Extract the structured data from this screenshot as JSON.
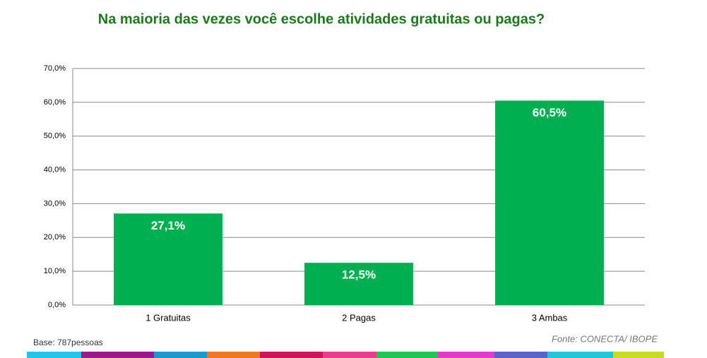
{
  "chart_data": {
    "type": "bar",
    "title": "Na maioria das vezes você escolhe atividades gratuitas ou pagas?",
    "categories": [
      "1 Gratuitas",
      "2 Pagas",
      "3 Ambas"
    ],
    "values": [
      27.1,
      12.5,
      60.5
    ],
    "value_labels": [
      "27,1%",
      "12,5%",
      "60,5%"
    ],
    "color": "#00b050",
    "ylim": [
      0,
      70
    ],
    "yticks": [
      {
        "value": 0,
        "label": "0,0%"
      },
      {
        "value": 10,
        "label": "10,0%"
      },
      {
        "value": 20,
        "label": "20,0%"
      },
      {
        "value": 30,
        "label": "30,0%"
      },
      {
        "value": 40,
        "label": "40,0%"
      },
      {
        "value": 50,
        "label": "50,0%"
      },
      {
        "value": 60,
        "label": "60,0%"
      },
      {
        "value": 70,
        "label": "70,0%"
      }
    ],
    "grid": true,
    "base_note": "Base: 787pessoas",
    "source": "Fonte: CONECTA/ IBOPE"
  }
}
